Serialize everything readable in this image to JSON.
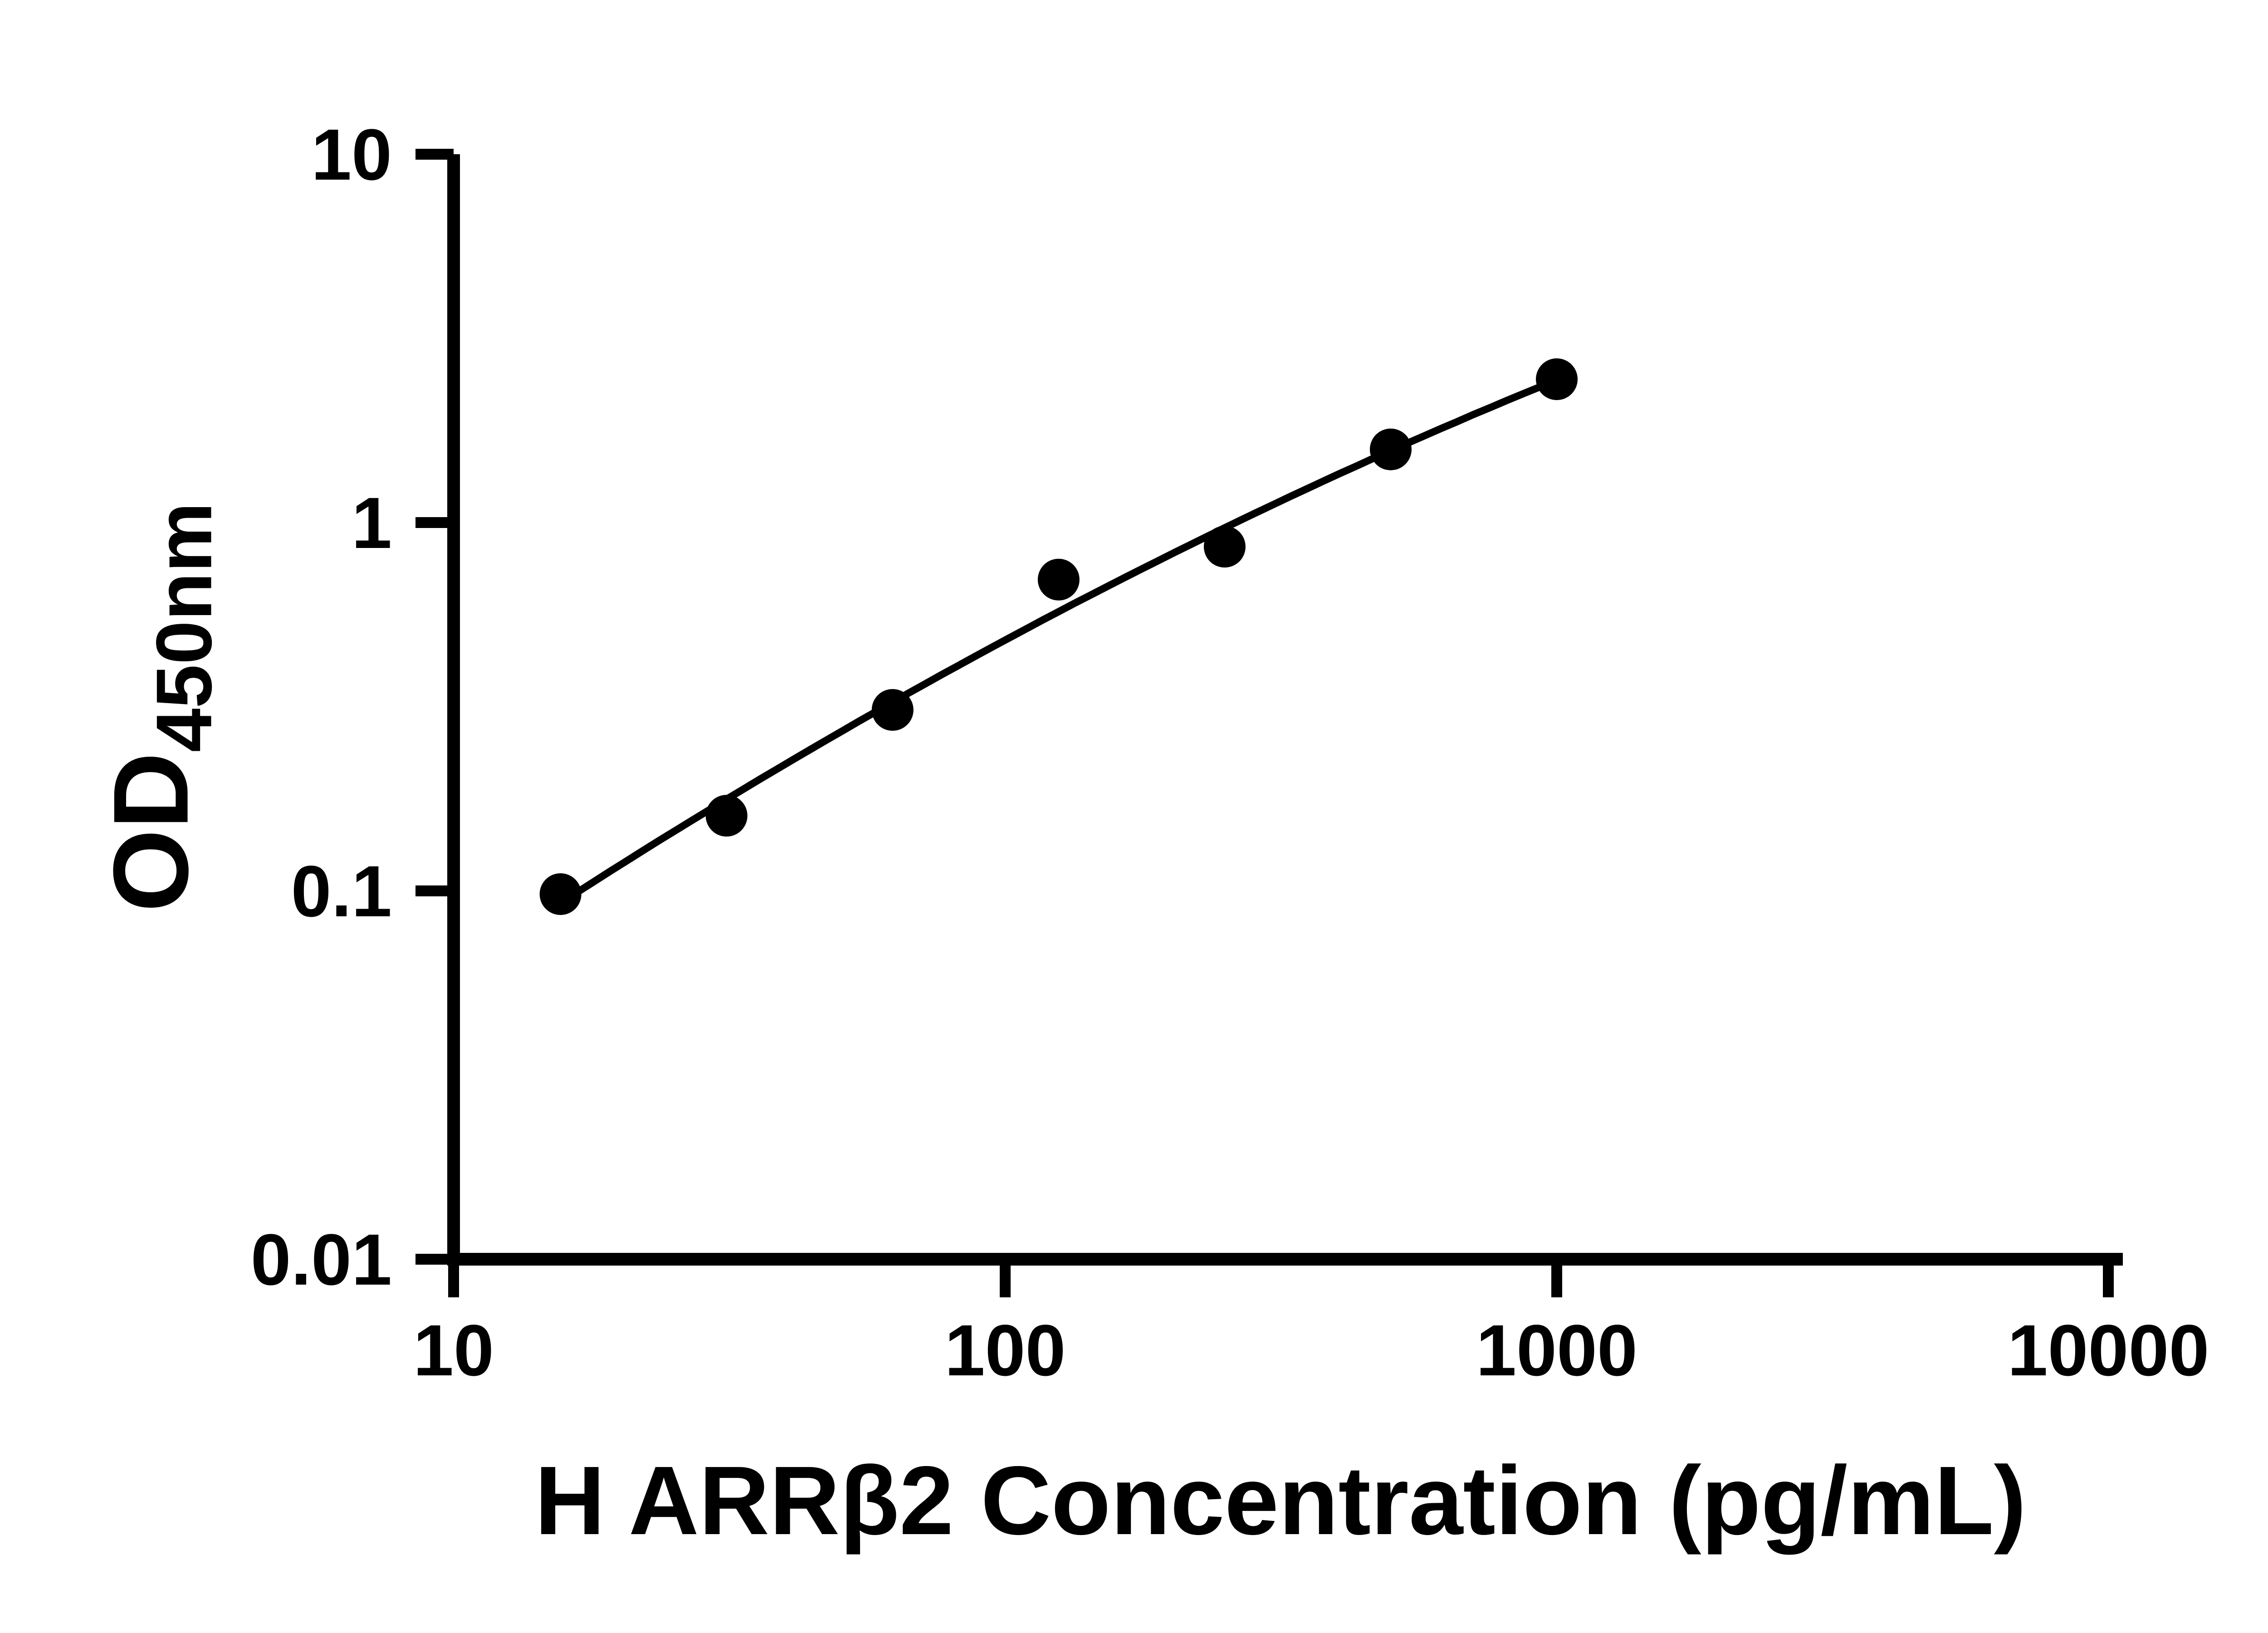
{
  "page": {
    "background": "#ffffff",
    "foreground": "#000000"
  },
  "chart_data": {
    "type": "scatter",
    "title": "",
    "grid": false,
    "legend": false,
    "x_axis": {
      "title": "H ARRβ2 Concentration (pg/mL)",
      "scale": "log",
      "range": [
        10,
        10000
      ],
      "ticks": [
        10,
        100,
        1000,
        10000
      ]
    },
    "y_axis": {
      "title_main": "OD",
      "title_sub": "450nm",
      "scale": "log",
      "range": [
        0.01,
        10
      ],
      "ticks": [
        10,
        1,
        0.1,
        0.01
      ]
    },
    "series": [
      {
        "marker": "circle",
        "color": "#000000",
        "fit": "quadratic-loglog",
        "points": [
          {
            "x": 15.625,
            "y": 0.098
          },
          {
            "x": 31.25,
            "y": 0.16
          },
          {
            "x": 62.5,
            "y": 0.31
          },
          {
            "x": 125,
            "y": 0.7
          },
          {
            "x": 250,
            "y": 0.86
          },
          {
            "x": 500,
            "y": 1.58
          },
          {
            "x": 1000,
            "y": 2.45
          }
        ]
      }
    ]
  }
}
